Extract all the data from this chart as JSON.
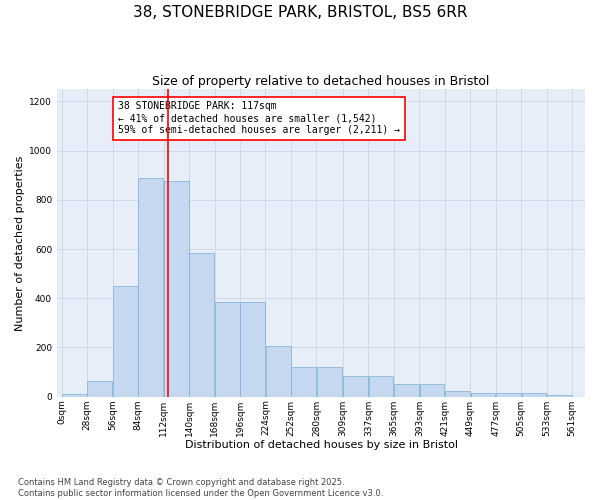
{
  "title": "38, STONEBRIDGE PARK, BRISTOL, BS5 6RR",
  "subtitle": "Size of property relative to detached houses in Bristol",
  "xlabel": "Distribution of detached houses by size in Bristol",
  "ylabel": "Number of detached properties",
  "bar_color": "#c5d8f0",
  "bar_edge_color": "#7aadd4",
  "bar_left_edges": [
    0,
    28,
    56,
    84,
    112,
    140,
    168,
    196,
    224,
    252,
    280,
    309,
    337,
    365,
    393,
    421,
    449,
    477,
    505,
    533
  ],
  "bar_widths": [
    28,
    28,
    28,
    28,
    28,
    28,
    28,
    28,
    28,
    28,
    29,
    28,
    28,
    28,
    28,
    28,
    28,
    28,
    28,
    28
  ],
  "bar_heights": [
    10,
    65,
    450,
    890,
    875,
    585,
    385,
    385,
    205,
    120,
    120,
    85,
    85,
    50,
    50,
    25,
    15,
    15,
    15,
    5
  ],
  "xtick_labels": [
    "0sqm",
    "28sqm",
    "56sqm",
    "84sqm",
    "112sqm",
    "140sqm",
    "168sqm",
    "196sqm",
    "224sqm",
    "252sqm",
    "280sqm",
    "309sqm",
    "337sqm",
    "365sqm",
    "393sqm",
    "421sqm",
    "449sqm",
    "477sqm",
    "505sqm",
    "533sqm",
    "561sqm"
  ],
  "xtick_positions": [
    0,
    28,
    56,
    84,
    112,
    140,
    168,
    196,
    224,
    252,
    280,
    309,
    337,
    365,
    393,
    421,
    449,
    477,
    505,
    533,
    561
  ],
  "ylim": [
    0,
    1250
  ],
  "xlim": [
    -5,
    575
  ],
  "yticks": [
    0,
    200,
    400,
    600,
    800,
    1000,
    1200
  ],
  "red_line_x": 117,
  "annotation_text": "38 STONEBRIDGE PARK: 117sqm\n← 41% of detached houses are smaller (1,542)\n59% of semi-detached houses are larger (2,211) →",
  "grid_color": "#d0d8ec",
  "background_color": "#e8eef8",
  "footer_text": "Contains HM Land Registry data © Crown copyright and database right 2025.\nContains public sector information licensed under the Open Government Licence v3.0.",
  "title_fontsize": 11,
  "subtitle_fontsize": 9,
  "axis_label_fontsize": 8,
  "tick_fontsize": 6.5,
  "annotation_fontsize": 7,
  "footer_fontsize": 6
}
